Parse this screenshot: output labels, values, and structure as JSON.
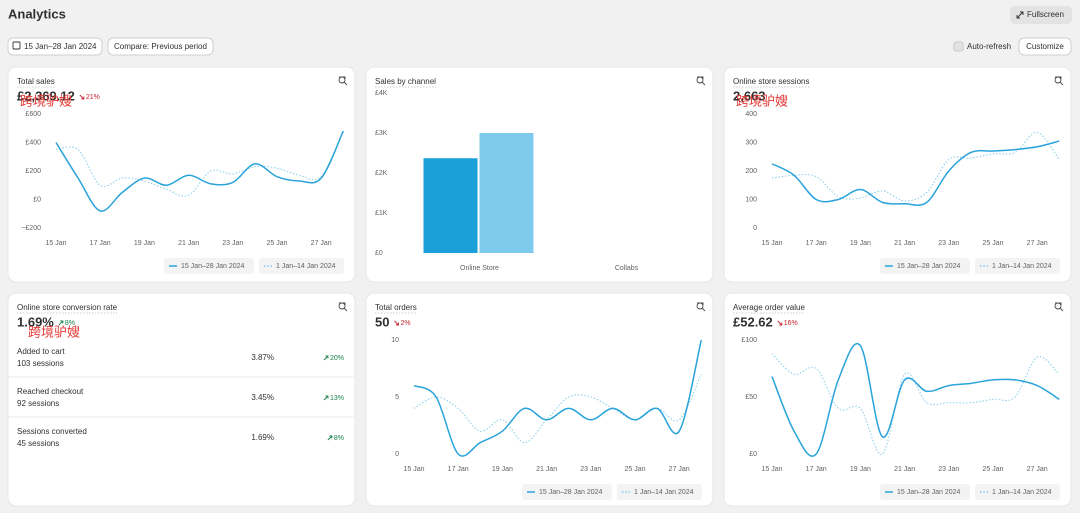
{
  "header": {
    "title": "Analytics",
    "fullscreen": "Fullscreen"
  },
  "toolbar": {
    "date_range": "15 Jan–28 Jan 2024",
    "compare": "Compare: Previous period",
    "auto_refresh": "Auto-refresh",
    "customize": "Customize"
  },
  "watermark": "跨境驴嫂",
  "cards": [
    {
      "title": "Total sales",
      "metric": "£2,369.12",
      "change": "21%",
      "trend": "down",
      "watermark": true,
      "chart": {
        "type": "line",
        "categories": [
          "15 Jan",
          null,
          "17 Jan",
          null,
          "19 Jan",
          null,
          "21 Jan",
          null,
          "23 Jan",
          null,
          "25 Jan",
          null,
          "27 Jan",
          null
        ],
        "ylim": [
          -200,
          600
        ],
        "yticks": [
          {
            "value": 600,
            "label": "£600"
          },
          {
            "value": 400,
            "label": "£400"
          },
          {
            "value": 200,
            "label": "£200"
          },
          {
            "value": 0,
            "label": "£0"
          },
          {
            "value": -200,
            "label": "−£200"
          }
        ],
        "series": [
          {
            "name": "15 Jan–28 Jan 2024",
            "color": "#29a3da",
            "style": "solid",
            "values": [
              400,
              150,
              -80,
              50,
              150,
              100,
              170,
              110,
              120,
              250,
              160,
              130,
              150,
              480
            ]
          },
          {
            "name": "1 Jan–14 Jan 2024",
            "color": "#86cdec",
            "style": "dotted",
            "values": [
              350,
              350,
              100,
              150,
              130,
              70,
              30,
              200,
              180,
              230,
              220,
              170,
              160,
              480
            ]
          }
        ]
      }
    },
    {
      "title": "Sales by channel",
      "chart": {
        "type": "bar",
        "categories": [
          "Online Store",
          "Collabs"
        ],
        "ylim": [
          0,
          4000
        ],
        "yticks": [
          {
            "value": 4000,
            "label": "£4K"
          },
          {
            "value": 3000,
            "label": "£3K"
          },
          {
            "value": 2000,
            "label": "£2K"
          },
          {
            "value": 1000,
            "label": "£1K"
          },
          {
            "value": 0,
            "label": "£0"
          }
        ],
        "series": [
          {
            "color": "#1b9fd9",
            "values": [
              2369.12,
              0
            ]
          },
          {
            "color": "#7ecaec",
            "values": [
              3000,
              0
            ]
          }
        ]
      }
    },
    {
      "title": "Online store sessions",
      "metric": "2,663",
      "watermark": true,
      "chart": {
        "type": "line",
        "categories": [
          "15 Jan",
          null,
          "17 Jan",
          null,
          "19 Jan",
          null,
          "21 Jan",
          null,
          "23 Jan",
          null,
          "25 Jan",
          null,
          "27 Jan",
          null
        ],
        "ylim": [
          0,
          400
        ],
        "yticks": [
          400,
          300,
          200,
          100,
          0
        ],
        "series": [
          {
            "name": "15 Jan–28 Jan 2024",
            "color": "#29a3da",
            "style": "solid",
            "values": [
              225,
              185,
              100,
              100,
              135,
              90,
              85,
              90,
              200,
              265,
              270,
              275,
              285,
              305
            ]
          },
          {
            "name": "1 Jan–14 Jan 2024",
            "color": "#86cdec",
            "style": "dotted",
            "values": [
              175,
              185,
              180,
              110,
              105,
              130,
              95,
              125,
              240,
              245,
              260,
              265,
              335,
              240
            ]
          }
        ]
      }
    },
    {
      "title": "Online store conversion rate",
      "metric": "1.69%",
      "change": "8%",
      "trend": "up",
      "watermark": true,
      "rows": [
        [
          "Added to cart",
          "103 sessions",
          "3.87%",
          "20%"
        ],
        [
          "Reached checkout",
          "92 sessions",
          "3.45%",
          "13%"
        ],
        [
          "Sessions converted",
          "45 sessions",
          "1.69%",
          "8%"
        ]
      ]
    },
    {
      "title": "Total orders",
      "metric": "50",
      "change": "2%",
      "trend": "down",
      "chart": {
        "type": "line",
        "categories": [
          "15 Jan",
          null,
          "17 Jan",
          null,
          "19 Jan",
          null,
          "21 Jan",
          null,
          "23 Jan",
          null,
          "25 Jan",
          null,
          "27 Jan",
          null
        ],
        "ylim": [
          0,
          10
        ],
        "yticks": [
          10,
          5,
          0
        ],
        "series": [
          {
            "name": "15 Jan–28 Jan 2024",
            "color": "#29a3da",
            "style": "solid",
            "values": [
              6,
              5,
              0,
              1,
              2,
              4,
              3,
              4,
              3,
              4,
              3,
              4,
              2,
              10
            ]
          },
          {
            "name": "1 Jan–14 Jan 2024",
            "color": "#86cdec",
            "style": "dotted",
            "values": [
              4,
              5,
              4,
              2,
              3,
              1,
              3,
              5,
              5,
              4,
              3,
              4,
              3,
              7
            ]
          }
        ]
      }
    },
    {
      "title": "Average order value",
      "metric": "£52.62",
      "change": "16%",
      "trend": "down",
      "chart": {
        "type": "line",
        "categories": [
          "15 Jan",
          null,
          "17 Jan",
          null,
          "19 Jan",
          null,
          "21 Jan",
          null,
          "23 Jan",
          null,
          "25 Jan",
          null,
          "27 Jan",
          null
        ],
        "ylim": [
          0,
          100
        ],
        "yticks": [
          {
            "value": 100,
            "label": "£100"
          },
          {
            "value": 50,
            "label": "£50"
          },
          {
            "value": 0,
            "label": "£0"
          }
        ],
        "series": [
          {
            "name": "15 Jan–28 Jan 2024",
            "color": "#29a3da",
            "style": "solid",
            "values": [
              68,
              20,
              0,
              65,
              95,
              15,
              65,
              55,
              60,
              62,
              65,
              65,
              60,
              48
            ]
          },
          {
            "name": "1 Jan–14 Jan 2024",
            "color": "#86cdec",
            "style": "dotted",
            "values": [
              88,
              70,
              75,
              40,
              40,
              0,
              70,
              45,
              45,
              45,
              48,
              50,
              85,
              70
            ]
          }
        ]
      }
    }
  ]
}
